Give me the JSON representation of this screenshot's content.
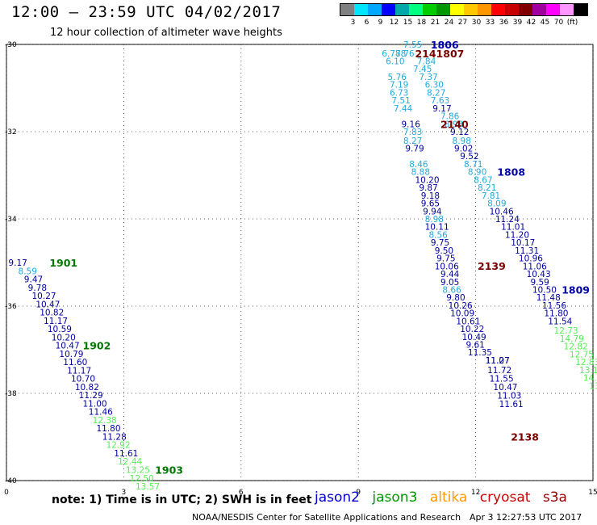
{
  "header": {
    "title": "12:00 – 23:59 UTC 04/02/2017",
    "subtitle": "12 hour collection of altimeter wave heights"
  },
  "legend": {
    "colors": [
      "#808080",
      "#00e6ff",
      "#00a8ff",
      "#0000ff",
      "#00a8a8",
      "#00ff80",
      "#00cc00",
      "#009600",
      "#ffff00",
      "#ffc800",
      "#ff9600",
      "#ff0000",
      "#c80000",
      "#800000",
      "#a000a0",
      "#ff00ff",
      "#ff96ff",
      "#000000"
    ],
    "labels": [
      "3",
      "6",
      "9",
      "12",
      "15",
      "18",
      "21",
      "24",
      "27",
      "30",
      "33",
      "36",
      "39",
      "42",
      "45",
      "70",
      "(ft)"
    ]
  },
  "footer": {
    "note": "note:  1) Time is in UTC;  2) SWH is in feet",
    "satellites": [
      {
        "name": "jason2",
        "color": "#0000cc"
      },
      {
        "name": "jason3",
        "color": "#009900"
      },
      {
        "name": "altika",
        "color": "#ff9900"
      },
      {
        "name": "cryosat",
        "color": "#cc0000"
      },
      {
        "name": "s3a",
        "color": "#990000"
      }
    ],
    "credit": "NOAA/NESDIS Center for Satellite Applications and Research",
    "timestamp": "Apr  3 12:27:53 UTC 2017"
  },
  "chart_data": {
    "type": "scatter",
    "xlim": [
      0,
      15
    ],
    "ylim": [
      -40,
      -30
    ],
    "xticks": [
      0,
      3,
      6,
      9,
      12,
      15
    ],
    "yticks": [
      -30,
      -32,
      -34,
      -36,
      -38,
      -40
    ],
    "ytick_labels": [
      "-30",
      "-32",
      "-34",
      "-36",
      "-38",
      "-40"
    ],
    "grid": true,
    "level_colors": {
      "cyan": "#22aadd",
      "blue": "#0000a0",
      "green": "#55ee55"
    },
    "tracks": [
      {
        "label": "1901",
        "label_x": 1.1,
        "label_y": -35.0,
        "label_color": "#007700",
        "points": [
          [
            0.05,
            -35.0,
            "9.17",
            "blue"
          ],
          [
            0.3,
            -35.19,
            "8.59",
            "cyan"
          ],
          [
            0.45,
            -35.38,
            "9.47",
            "blue"
          ],
          [
            0.55,
            -35.57,
            "9.78",
            "blue"
          ],
          [
            0.65,
            -35.76,
            "10.27",
            "blue"
          ],
          [
            0.75,
            -35.95,
            "10.47",
            "blue"
          ],
          [
            0.85,
            -36.14,
            "10.82",
            "blue"
          ],
          [
            0.95,
            -36.33,
            "11.17",
            "blue"
          ],
          [
            1.05,
            -36.52,
            "10.59",
            "blue"
          ],
          [
            1.15,
            -36.71,
            "10.20",
            "blue"
          ],
          [
            1.25,
            -36.9,
            "10.47",
            "blue"
          ]
        ]
      },
      {
        "label": "1902",
        "label_x": 1.95,
        "label_y": -36.9,
        "label_color": "#007700",
        "points": [
          [
            1.35,
            -37.09,
            "10.79",
            "blue"
          ],
          [
            1.45,
            -37.28,
            "11.60",
            "blue"
          ],
          [
            1.55,
            -37.47,
            "11.17",
            "blue"
          ],
          [
            1.65,
            -37.66,
            "10.70",
            "blue"
          ],
          [
            1.75,
            -37.85,
            "10.82",
            "blue"
          ],
          [
            1.85,
            -38.04,
            "11.29",
            "blue"
          ],
          [
            1.95,
            -38.23,
            "11.00",
            "blue"
          ],
          [
            2.1,
            -38.42,
            "11.46",
            "blue"
          ],
          [
            2.2,
            -38.61,
            "12.38",
            "green"
          ],
          [
            2.3,
            -38.8,
            "11.80",
            "blue"
          ],
          [
            2.45,
            -38.99,
            "11.28",
            "blue"
          ],
          [
            2.55,
            -39.18,
            "12.92",
            "green"
          ],
          [
            2.75,
            -39.37,
            "11.61",
            "blue"
          ],
          [
            2.85,
            -39.56,
            "12.44",
            "green"
          ]
        ]
      },
      {
        "label": "1903",
        "label_x": 3.8,
        "label_y": -39.75,
        "label_color": "#007700",
        "points": [
          [
            3.05,
            -39.75,
            "13.25",
            "green"
          ],
          [
            3.15,
            -39.94,
            "12.50",
            "green"
          ],
          [
            3.3,
            -40.13,
            "13.57",
            "green"
          ]
        ]
      },
      {
        "label": "1806",
        "label_x": 10.85,
        "label_y": -30.0,
        "label_color": "#0000aa",
        "points": [
          [
            10.15,
            -30.0,
            "7.55",
            "cyan"
          ],
          [
            9.6,
            -30.2,
            "6.788",
            "cyan"
          ],
          [
            9.95,
            -30.2,
            "7.76",
            "cyan"
          ],
          [
            10.5,
            -30.38,
            "7.84",
            "cyan"
          ],
          [
            9.7,
            -30.38,
            "6.10",
            "cyan"
          ],
          [
            10.4,
            -30.56,
            "7.45",
            "cyan"
          ],
          [
            9.75,
            -30.74,
            "5.76",
            "cyan"
          ],
          [
            10.55,
            -30.74,
            "7.37",
            "cyan"
          ],
          [
            9.8,
            -30.92,
            "7.19",
            "cyan"
          ],
          [
            10.7,
            -30.92,
            "6.30",
            "cyan"
          ],
          [
            10.75,
            -31.1,
            "8.27",
            "cyan"
          ],
          [
            9.8,
            -31.1,
            "6.73",
            "cyan"
          ],
          [
            10.85,
            -31.28,
            "7.63",
            "cyan"
          ],
          [
            9.85,
            -31.28,
            "7.51",
            "cyan"
          ],
          [
            9.9,
            -31.46,
            "7.44",
            "cyan"
          ],
          [
            10.9,
            -31.46,
            "9.17",
            "blue"
          ],
          [
            11.1,
            -31.64,
            "7.86",
            "cyan"
          ],
          [
            10.1,
            -31.82,
            "9.16",
            "blue"
          ],
          [
            11.2,
            -31.82,
            "8.93",
            "cyan"
          ],
          [
            10.15,
            -32.0,
            "7.83",
            "cyan"
          ],
          [
            11.35,
            -32.0,
            "9.12",
            "blue"
          ],
          [
            10.15,
            -32.2,
            "8.27",
            "cyan"
          ],
          [
            11.4,
            -32.2,
            "8.98",
            "cyan"
          ],
          [
            11.45,
            -32.38,
            "9.02",
            "blue"
          ],
          [
            10.2,
            -32.38,
            "9.79",
            "blue"
          ],
          [
            11.6,
            -32.56,
            "9.52",
            "blue"
          ],
          [
            10.3,
            -32.74,
            "8.46",
            "cyan"
          ],
          [
            11.7,
            -32.74,
            "8.71",
            "cyan"
          ],
          [
            10.35,
            -32.92,
            "8.88",
            "cyan"
          ],
          [
            11.8,
            -32.92,
            "8.90",
            "cyan"
          ],
          [
            10.45,
            -33.1,
            "10.20",
            "blue"
          ],
          [
            11.95,
            -33.1,
            "8.67",
            "cyan"
          ],
          [
            10.55,
            -33.28,
            "9.87",
            "blue"
          ],
          [
            12.05,
            -33.28,
            "8.21",
            "cyan"
          ],
          [
            10.6,
            -33.46,
            "9.18",
            "blue"
          ],
          [
            12.15,
            -33.46,
            "7.81",
            "cyan"
          ]
        ]
      },
      {
        "label": "2141807",
        "label_x": 10.45,
        "label_y": -30.2,
        "label_color": "#7a0000",
        "points": []
      },
      {
        "label": "2140",
        "label_x": 11.1,
        "label_y": -31.82,
        "label_color": "#7a0000",
        "points": []
      },
      {
        "label": "1808",
        "label_x": 12.55,
        "label_y": -32.92,
        "label_color": "#0000aa",
        "points": [
          [
            12.3,
            -33.64,
            "8.09",
            "cyan"
          ],
          [
            12.35,
            -33.82,
            "10.46",
            "blue"
          ],
          [
            12.5,
            -34.0,
            "11.24",
            "blue"
          ],
          [
            12.65,
            -34.18,
            "11.01",
            "blue"
          ],
          [
            12.75,
            -34.36,
            "11.20",
            "blue"
          ],
          [
            12.9,
            -34.54,
            "10.17",
            "blue"
          ],
          [
            13.0,
            -34.72,
            "11.31",
            "blue"
          ],
          [
            13.1,
            -34.9,
            "10.96",
            "blue"
          ],
          [
            13.2,
            -35.08,
            "11.06",
            "blue"
          ],
          [
            13.3,
            -35.26,
            "10.43",
            "blue"
          ],
          [
            13.4,
            -35.44,
            "9.59",
            "blue"
          ],
          [
            13.45,
            -35.62,
            "10.50",
            "blue"
          ],
          [
            13.55,
            -35.8,
            "11.48",
            "blue"
          ],
          [
            13.7,
            -35.98,
            "11.56",
            "blue"
          ],
          [
            13.75,
            -36.16,
            "11.80",
            "blue"
          ],
          [
            13.85,
            -36.34,
            "11.54",
            "blue"
          ]
        ]
      },
      {
        "label": "1809",
        "label_x": 14.2,
        "label_y": -35.62,
        "label_color": "#0000aa",
        "points": [
          [
            14.0,
            -36.56,
            "12.73",
            "green"
          ],
          [
            14.15,
            -36.74,
            "14.79",
            "green"
          ],
          [
            14.25,
            -36.92,
            "12.82",
            "green"
          ],
          [
            14.4,
            -37.1,
            "12.75",
            "green"
          ],
          [
            14.55,
            -37.28,
            "12.83",
            "green"
          ],
          [
            14.65,
            -37.46,
            "13.1",
            "green"
          ],
          [
            14.75,
            -37.64,
            "14.",
            "green"
          ],
          [
            14.9,
            -37.82,
            "13",
            "green"
          ]
        ]
      },
      {
        "label": "2139",
        "label_x": 12.05,
        "label_y": -35.07,
        "label_color": "#7a0000",
        "points": [
          [
            10.6,
            -33.64,
            "9.65",
            "blue"
          ],
          [
            10.65,
            -33.82,
            "9.94",
            "blue"
          ],
          [
            10.7,
            -34.0,
            "8.98",
            "cyan"
          ],
          [
            10.7,
            -34.18,
            "10.11",
            "blue"
          ],
          [
            10.8,
            -34.36,
            "8.56",
            "cyan"
          ],
          [
            10.85,
            -34.54,
            "9.75",
            "blue"
          ],
          [
            10.95,
            -34.72,
            "9.50",
            "blue"
          ],
          [
            11.0,
            -34.9,
            "9.75",
            "blue"
          ],
          [
            10.95,
            -35.08,
            "10.06",
            "blue"
          ],
          [
            11.1,
            -35.26,
            "9.44",
            "blue"
          ],
          [
            11.1,
            -35.44,
            "9.05",
            "blue"
          ],
          [
            11.15,
            -35.62,
            "8.66",
            "cyan"
          ],
          [
            11.25,
            -35.8,
            "9.80",
            "blue"
          ],
          [
            11.3,
            -35.98,
            "10.26",
            "blue"
          ],
          [
            11.35,
            -36.16,
            "10.09",
            "blue"
          ],
          [
            11.5,
            -36.34,
            "10.61",
            "blue"
          ],
          [
            11.6,
            -36.52,
            "10.22",
            "blue"
          ],
          [
            11.65,
            -36.7,
            "10.49",
            "blue"
          ],
          [
            11.75,
            -36.88,
            "9.61",
            "blue"
          ],
          [
            11.8,
            -37.06,
            "11.35",
            "blue"
          ],
          [
            12.25,
            -37.24,
            "11.27",
            "blue"
          ],
          [
            12.25,
            -37.24,
            "11.07",
            "blue"
          ]
        ]
      },
      {
        "label": "2138",
        "label_x": 12.9,
        "label_y": -38.99,
        "label_color": "#7a0000",
        "points": [
          [
            12.3,
            -37.46,
            "11.72",
            "blue"
          ],
          [
            12.35,
            -37.66,
            "11.55",
            "blue"
          ],
          [
            12.45,
            -37.85,
            "10.47",
            "blue"
          ],
          [
            12.55,
            -38.05,
            "11.03",
            "blue"
          ],
          [
            12.6,
            -38.24,
            "11.61",
            "blue"
          ]
        ]
      }
    ]
  }
}
